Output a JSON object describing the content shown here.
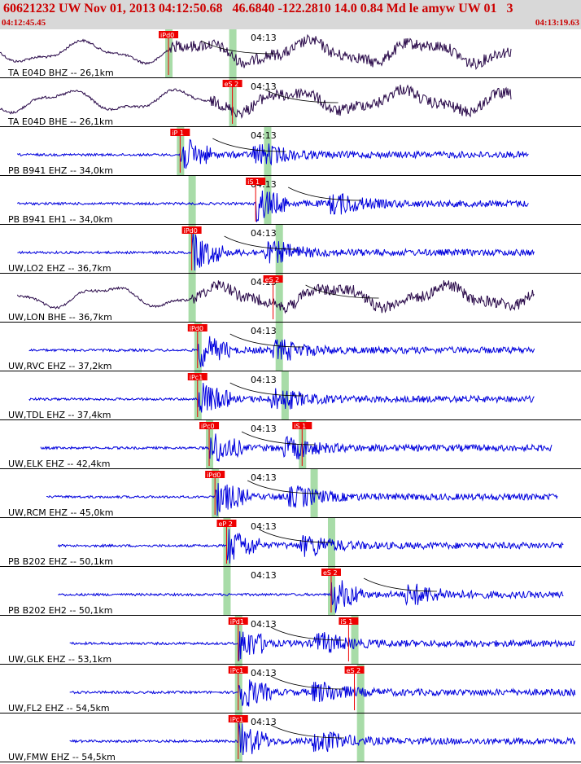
{
  "header": {
    "title": "60621232 UW Nov 01, 2013 04:12:50.68   46.6840 -122.2810 14.0 0.84 Md le amyw UW 01   3",
    "time_start": "04:12:45.45",
    "time_end": "04:13:19.63"
  },
  "colors": {
    "header_bg": "#d8d8d8",
    "header_text": "#cc0000",
    "pick_box": "#ee0000",
    "pick_text": "#ffffff",
    "window_band": "#a8dca8",
    "trace_blue": "#0000dd",
    "trace_dark": "#2a0a4a"
  },
  "chart_data": {
    "type": "line",
    "title": "60621232 UW Nov 01, 2013 04:12:50.68   46.6840 -122.2810 14.0 0.84 Md le amyw UW 01   3",
    "x_range": [
      "04:12:45.45",
      "04:13:19.63"
    ],
    "x_tick_label": "04:13",
    "traces": [
      {
        "label": "TA E04D BHZ -- 26,1km",
        "color": "dark",
        "wave": "long",
        "start": 0.0,
        "end": 0.88,
        "onset": 0.29,
        "picks": [
          {
            "label": "iPd0",
            "x": 0.29
          }
        ],
        "band": [
          0.29,
          0.4
        ]
      },
      {
        "label": "TA E04D BHE -- 26,1km",
        "color": "dark",
        "wave": "long",
        "start": 0.0,
        "end": 0.88,
        "onset": 0.36,
        "picks": [
          {
            "label": "eS 2",
            "x": 0.4
          }
        ],
        "band": [
          0.4,
          0.4
        ]
      },
      {
        "label": "PB B941 EHZ -- 34,0km",
        "color": "blue",
        "wave": "short",
        "start": 0.03,
        "end": 0.91,
        "onset": 0.31,
        "picks": [
          {
            "label": "iP 1",
            "x": 0.31
          }
        ],
        "band": [
          0.31,
          0.46
        ]
      },
      {
        "label": "PB B941 EH1 -- 34,0km",
        "color": "blue",
        "wave": "short",
        "start": 0.03,
        "end": 0.91,
        "onset": 0.44,
        "picks": [
          {
            "label": "iS 1",
            "x": 0.44
          }
        ],
        "band": [
          0.33,
          0.46
        ]
      },
      {
        "label": "UW,LO2 EHZ -- 36,7km",
        "color": "blue",
        "wave": "short",
        "start": 0.03,
        "end": 0.92,
        "onset": 0.33,
        "picks": [
          {
            "label": "iPd0",
            "x": 0.33
          }
        ],
        "band": [
          0.33,
          0.48
        ]
      },
      {
        "label": "UW,LON BHE -- 36,7km",
        "color": "dark",
        "wave": "long",
        "start": 0.03,
        "end": 0.92,
        "onset": 0.33,
        "picks": [
          {
            "label": "eS 2",
            "x": 0.47
          }
        ],
        "band": [
          0.33,
          0.48
        ]
      },
      {
        "label": "UW,RVC EHZ -- 37,2km",
        "color": "blue",
        "wave": "short",
        "start": 0.05,
        "end": 0.92,
        "onset": 0.34,
        "picks": [
          {
            "label": "iPd0",
            "x": 0.34
          }
        ],
        "band": [
          0.34,
          0.48
        ]
      },
      {
        "label": "UW,TDL EHZ -- 37,4km",
        "color": "blue",
        "wave": "short",
        "start": 0.05,
        "end": 0.92,
        "onset": 0.34,
        "picks": [
          {
            "label": "iPc1",
            "x": 0.34
          }
        ],
        "band": [
          0.34,
          0.49
        ]
      },
      {
        "label": "UW,ELK EHZ -- 42,4km",
        "color": "blue",
        "wave": "short",
        "start": 0.07,
        "end": 0.95,
        "onset": 0.36,
        "picks": [
          {
            "label": "iPc0",
            "x": 0.36
          },
          {
            "label": "iS 1",
            "x": 0.52
          }
        ],
        "band": [
          0.36,
          0.52
        ]
      },
      {
        "label": "UW,RCM EHZ -- 45,0km",
        "color": "blue",
        "wave": "short",
        "start": 0.08,
        "end": 0.96,
        "onset": 0.37,
        "picks": [
          {
            "label": "iPd0",
            "x": 0.37
          }
        ],
        "band": [
          0.37,
          0.54
        ]
      },
      {
        "label": "PB B202 EHZ -- 50,1km",
        "color": "blue",
        "wave": "short",
        "start": 0.1,
        "end": 0.97,
        "onset": 0.39,
        "picks": [
          {
            "label": "eP 2",
            "x": 0.39
          }
        ],
        "band": [
          0.39,
          0.57
        ]
      },
      {
        "label": "PB B202 EH2 -- 50,1km",
        "color": "blue",
        "wave": "short",
        "start": 0.1,
        "end": 0.97,
        "onset": 0.57,
        "picks": [
          {
            "label": "eS 2",
            "x": 0.57
          }
        ],
        "band": [
          0.39,
          0.57
        ]
      },
      {
        "label": "UW,GLK EHZ -- 53,1km",
        "color": "blue",
        "wave": "short",
        "start": 0.12,
        "end": 0.99,
        "onset": 0.41,
        "picks": [
          {
            "label": "iPd1",
            "x": 0.41
          },
          {
            "label": "iS 1",
            "x": 0.6
          }
        ],
        "band": [
          0.41,
          0.61
        ]
      },
      {
        "label": "UW,FL2 EHZ -- 54,5km",
        "color": "blue",
        "wave": "short",
        "start": 0.12,
        "end": 0.99,
        "onset": 0.41,
        "picks": [
          {
            "label": "iPc1",
            "x": 0.41
          },
          {
            "label": "eS 2",
            "x": 0.61
          }
        ],
        "band": [
          0.41,
          0.62
        ]
      },
      {
        "label": "UW,FMW EHZ -- 54,5km",
        "color": "blue",
        "wave": "short",
        "start": 0.12,
        "end": 0.99,
        "onset": 0.41,
        "picks": [
          {
            "label": "iPc1",
            "x": 0.41
          }
        ],
        "band": [
          0.41,
          0.62
        ]
      }
    ]
  }
}
